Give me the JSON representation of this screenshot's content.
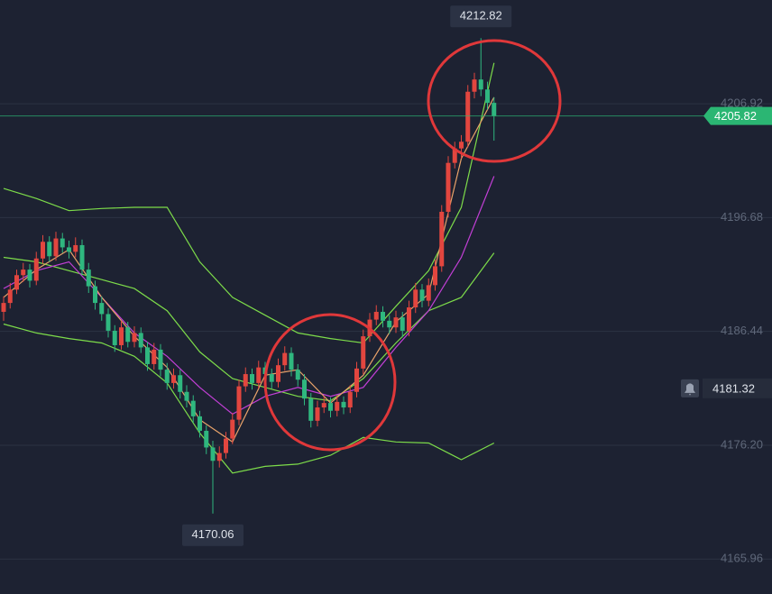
{
  "chart_data": {
    "type": "candlestick",
    "up_color": "#e2463f",
    "down_color": "#2fb77f",
    "ohlc": [
      [
        4188.2,
        4189.6,
        4187.4,
        4189.0
      ],
      [
        4189.0,
        4190.8,
        4188.5,
        4190.2
      ],
      [
        4190.2,
        4192.0,
        4189.8,
        4191.5
      ],
      [
        4191.5,
        4192.6,
        4190.9,
        4192.0
      ],
      [
        4192.0,
        4192.5,
        4190.4,
        4191.0
      ],
      [
        4191.0,
        4193.6,
        4190.6,
        4193.0
      ],
      [
        4193.0,
        4195.1,
        4192.5,
        4194.5
      ],
      [
        4194.5,
        4195.0,
        4192.7,
        4193.2
      ],
      [
        4193.2,
        4195.4,
        4192.8,
        4194.8
      ],
      [
        4194.8,
        4195.3,
        4193.5,
        4194.0
      ],
      [
        4194.0,
        4194.6,
        4193.0,
        4193.6
      ],
      [
        4193.6,
        4194.9,
        4193.1,
        4194.2
      ],
      [
        4194.2,
        4194.7,
        4191.5,
        4192.0
      ],
      [
        4192.0,
        4192.6,
        4189.9,
        4190.5
      ],
      [
        4190.5,
        4191.0,
        4188.4,
        4189.0
      ],
      [
        4189.0,
        4189.6,
        4187.4,
        4188.0
      ],
      [
        4188.0,
        4188.5,
        4185.9,
        4186.5
      ],
      [
        4186.5,
        4187.0,
        4184.6,
        4185.2
      ],
      [
        4185.2,
        4187.4,
        4184.8,
        4186.8
      ],
      [
        4186.8,
        4187.3,
        4185.0,
        4185.5
      ],
      [
        4185.5,
        4186.9,
        4185.0,
        4186.3
      ],
      [
        4186.3,
        4186.8,
        4184.5,
        4185.0
      ],
      [
        4185.0,
        4185.5,
        4182.9,
        4183.5
      ],
      [
        4183.5,
        4185.4,
        4183.0,
        4184.8
      ],
      [
        4184.8,
        4185.3,
        4182.4,
        4183.0
      ],
      [
        4183.0,
        4183.6,
        4181.2,
        4181.8
      ],
      [
        4181.8,
        4183.1,
        4181.3,
        4182.5
      ],
      [
        4182.5,
        4183.0,
        4180.4,
        4181.0
      ],
      [
        4181.0,
        4181.6,
        4179.6,
        4180.2
      ],
      [
        4180.2,
        4180.7,
        4178.2,
        4178.8
      ],
      [
        4178.8,
        4179.3,
        4176.9,
        4177.5
      ],
      [
        4177.5,
        4178.0,
        4175.4,
        4176.0
      ],
      [
        4176.0,
        4176.6,
        4170.06,
        4174.8
      ],
      [
        4174.8,
        4176.1,
        4174.2,
        4175.5
      ],
      [
        4175.5,
        4177.4,
        4175.0,
        4176.8
      ],
      [
        4176.8,
        4179.1,
        4176.3,
        4178.5
      ],
      [
        4178.5,
        4182.1,
        4178.0,
        4181.5
      ],
      [
        4181.5,
        4183.2,
        4181.0,
        4182.6
      ],
      [
        4182.6,
        4183.1,
        4181.2,
        4181.8
      ],
      [
        4181.8,
        4183.8,
        4181.3,
        4183.2
      ],
      [
        4183.2,
        4183.7,
        4182.0,
        4182.6
      ],
      [
        4182.6,
        4183.1,
        4181.3,
        4181.9
      ],
      [
        4181.9,
        4184.0,
        4181.4,
        4183.4
      ],
      [
        4183.4,
        4185.1,
        4182.9,
        4184.5
      ],
      [
        4184.5,
        4185.0,
        4182.4,
        4183.0
      ],
      [
        4183.0,
        4183.5,
        4181.5,
        4182.1
      ],
      [
        4182.1,
        4182.6,
        4179.8,
        4180.4
      ],
      [
        4180.4,
        4180.9,
        4177.8,
        4178.4
      ],
      [
        4178.4,
        4180.2,
        4177.9,
        4179.6
      ],
      [
        4179.6,
        4180.6,
        4179.1,
        4180.0
      ],
      [
        4180.0,
        4180.5,
        4178.7,
        4179.3
      ],
      [
        4179.3,
        4180.7,
        4178.8,
        4180.1
      ],
      [
        4180.1,
        4180.6,
        4179.0,
        4179.6
      ],
      [
        4179.6,
        4181.6,
        4179.1,
        4181.0
      ],
      [
        4181.0,
        4183.7,
        4180.5,
        4183.1
      ],
      [
        4183.1,
        4186.6,
        4182.6,
        4186.0
      ],
      [
        4186.0,
        4188.1,
        4185.5,
        4187.5
      ],
      [
        4187.5,
        4188.8,
        4187.0,
        4188.2
      ],
      [
        4188.2,
        4188.7,
        4186.8,
        4187.4
      ],
      [
        4187.4,
        4187.9,
        4186.2,
        4186.8
      ],
      [
        4186.8,
        4188.3,
        4186.3,
        4187.7
      ],
      [
        4187.7,
        4188.2,
        4185.9,
        4186.5
      ],
      [
        4186.5,
        4189.2,
        4186.0,
        4188.6
      ],
      [
        4188.6,
        4190.8,
        4188.1,
        4190.2
      ],
      [
        4190.2,
        4190.7,
        4188.6,
        4189.2
      ],
      [
        4189.2,
        4191.2,
        4188.7,
        4190.6
      ],
      [
        4190.6,
        4192.9,
        4190.1,
        4192.3
      ],
      [
        4192.3,
        4197.8,
        4191.8,
        4197.2
      ],
      [
        4197.2,
        4202.2,
        4196.7,
        4201.6
      ],
      [
        4201.6,
        4203.5,
        4201.1,
        4202.9
      ],
      [
        4202.9,
        4204.1,
        4202.0,
        4203.5
      ],
      [
        4203.5,
        4208.6,
        4203.0,
        4208.0
      ],
      [
        4208.0,
        4209.7,
        4207.4,
        4209.1
      ],
      [
        4209.1,
        4212.82,
        4207.6,
        4208.2
      ],
      [
        4208.2,
        4208.9,
        4206.4,
        4207.0
      ],
      [
        4207.0,
        4207.5,
        4203.6,
        4205.82
      ]
    ],
    "lines": {
      "x": [
        0,
        5,
        10,
        15,
        20,
        25,
        30,
        35,
        40,
        45,
        50,
        55,
        60,
        65,
        70,
        75
      ],
      "series": [
        {
          "color": "#7ddc4a",
          "values": [
            4199.3,
            4198.4,
            4197.3,
            4197.5,
            4197.6,
            4197.6,
            4192.7,
            4189.5,
            4187.9,
            4186.3,
            4185.8,
            4185.4,
            4188.7,
            4191.9,
            4197.6,
            4210.6
          ]
        },
        {
          "color": "#7ddc4a",
          "values": [
            4193.1,
            4192.7,
            4191.9,
            4191.1,
            4190.3,
            4188.3,
            4184.6,
            4182.2,
            4181.4,
            4180.6,
            4180.2,
            4182.2,
            4185.4,
            4188.3,
            4189.5,
            4193.5
          ]
        },
        {
          "color": "#7ddc4a",
          "values": [
            4187.1,
            4186.3,
            4185.8,
            4185.4,
            4184.2,
            4181.8,
            4177.3,
            4173.7,
            4174.3,
            4174.5,
            4175.3,
            4176.9,
            4176.5,
            4176.4,
            4174.9,
            4176.4
          ]
        },
        {
          "color": "#c23fd6",
          "values": [
            4190.3,
            4191.9,
            4192.7,
            4189.5,
            4186.3,
            4184.2,
            4181.4,
            4179.0,
            4180.6,
            4181.4,
            4180.6,
            4181.4,
            4185.0,
            4188.3,
            4193.1,
            4200.4
          ]
        },
        {
          "color": "#e9a36a",
          "values": [
            4189.5,
            4192.0,
            4193.8,
            4189.5,
            4186.0,
            4183.2,
            4178.5,
            4176.5,
            4182.5,
            4183.0,
            4180.0,
            4182.5,
            4187.3,
            4189.8,
            4202.0,
            4207.5
          ]
        }
      ]
    },
    "ylim": [
      4162.82,
      4216.25
    ],
    "yticks": [
      4165.96,
      {
        "value": 4176.2,
        "label": "4176.20"
      },
      4186.44,
      4196.68,
      4206.92
    ],
    "grid": true,
    "alert_price": 4181.32
  }
}
